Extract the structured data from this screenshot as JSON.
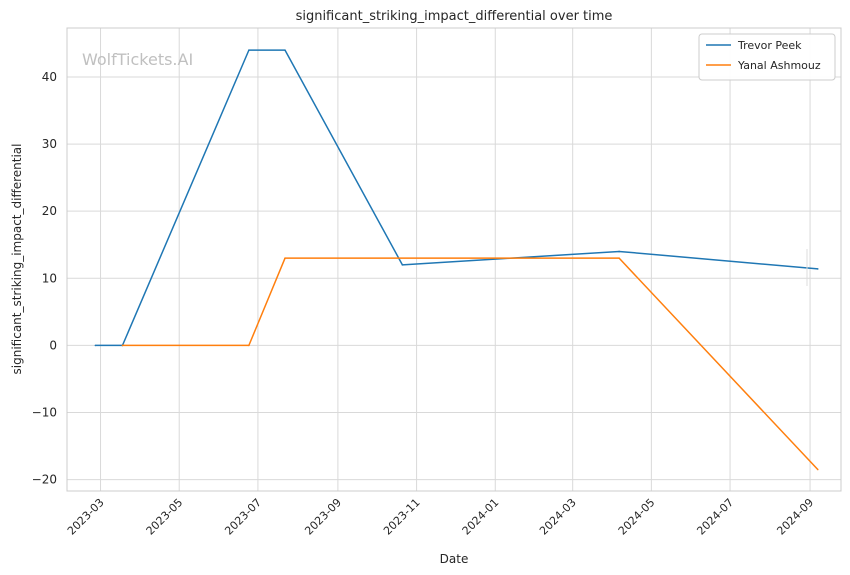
{
  "watermark": "WolfTickets.AI",
  "chart_data": {
    "type": "line",
    "title": "significant_striking_impact_differential over time",
    "xlabel": "Date",
    "ylabel": "significant_striking_impact_differential",
    "x_ticks": [
      "2023-03",
      "2023-05",
      "2023-07",
      "2023-09",
      "2023-11",
      "2024-01",
      "2024-03",
      "2024-05",
      "2024-07",
      "2024-09"
    ],
    "y_ticks": [
      -20,
      -10,
      0,
      10,
      20,
      30,
      40
    ],
    "xlim": [
      "2023-02-03",
      "2024-09-25"
    ],
    "ylim": [
      -21.7,
      47.3
    ],
    "grid": true,
    "legend_position": "top-right",
    "series": [
      {
        "name": "Trevor Peek",
        "color": "#1f77b4",
        "points": [
          {
            "x": "2023-02-25",
            "y": 0
          },
          {
            "x": "2023-03-18",
            "y": 0
          },
          {
            "x": "2023-06-24",
            "y": 44
          },
          {
            "x": "2023-07-22",
            "y": 44
          },
          {
            "x": "2023-10-21",
            "y": 12
          },
          {
            "x": "2024-04-06",
            "y": 14
          },
          {
            "x": "2024-09-07",
            "y": 11.4
          }
        ]
      },
      {
        "name": "Yanal Ashmouz",
        "color": "#ff7f0e",
        "points": [
          {
            "x": "2023-03-18",
            "y": 0
          },
          {
            "x": "2023-06-24",
            "y": 0
          },
          {
            "x": "2023-07-22",
            "y": 13
          },
          {
            "x": "2024-04-06",
            "y": 13
          },
          {
            "x": "2024-09-07",
            "y": -18.5
          }
        ]
      }
    ]
  }
}
